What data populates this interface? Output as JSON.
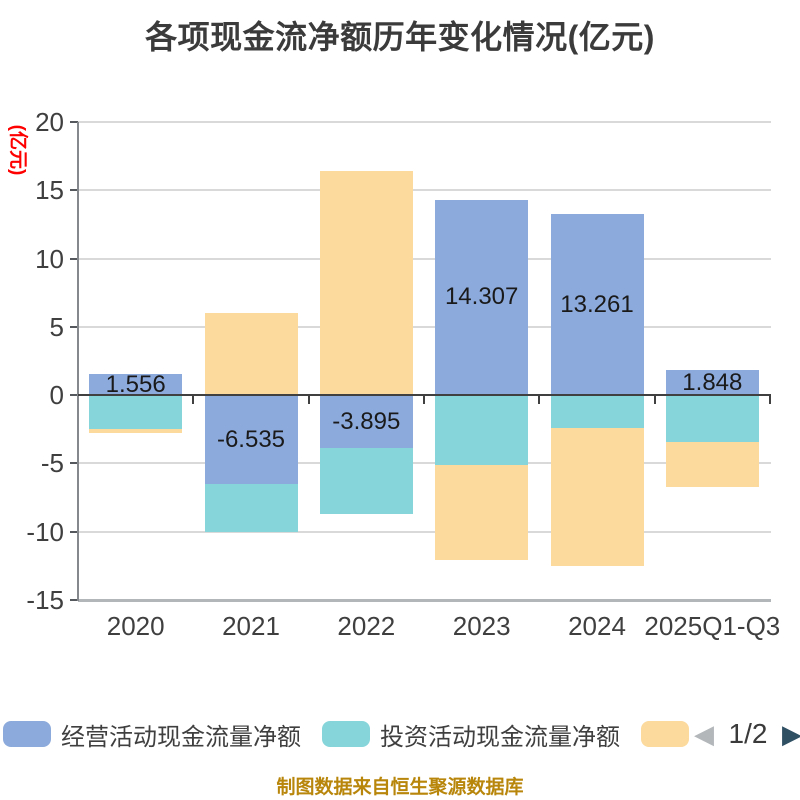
{
  "title": "各项现金流净额历年变化情况(亿元)",
  "y_axis": {
    "name": "(亿元)",
    "name_color": "#fe0000",
    "ticks": [
      20,
      15,
      10,
      5,
      0,
      -5,
      -10,
      -15
    ]
  },
  "chart_data": {
    "type": "bar",
    "stacked": true,
    "title": "各项现金流净额历年变化情况(亿元)",
    "categories": [
      "2020",
      "2021",
      "2022",
      "2023",
      "2024",
      "2025Q1-Q3"
    ],
    "series": [
      {
        "name": "经营活动现金流量净额",
        "color": "#8caadb",
        "values": [
          1.556,
          -6.535,
          -3.895,
          14.307,
          13.261,
          1.848
        ],
        "data_labels": [
          "1.556",
          "-6.535",
          "-3.895",
          "14.307",
          "13.261",
          "1.848"
        ]
      },
      {
        "name": "投资活动现金流量净额",
        "color": "#86d5da",
        "values": [
          -2.5,
          -3.5,
          -4.8,
          -5.1,
          -2.4,
          -3.4
        ]
      },
      {
        "name": "",
        "color": "#fcd99c",
        "values": [
          -0.26,
          6.0,
          16.4,
          -7.0,
          -10.1,
          -3.3
        ]
      }
    ],
    "ylabel": "(亿元)",
    "ylim": [
      -15,
      20
    ],
    "y_tick_step": 5,
    "grid": true,
    "legend_position": "bottom"
  },
  "legend": {
    "items": [
      {
        "label": "经营活动现金流量净额",
        "color": "#8caadb"
      },
      {
        "label": "投资活动现金流量净额",
        "color": "#86d5da"
      },
      {
        "label": "",
        "color": "#fcd99c"
      }
    ],
    "pagination": {
      "current": "1/2",
      "prev_arrow": "◀",
      "next_arrow": "▶",
      "prev_color": "#b3b7ba",
      "next_color": "#2f4f63"
    }
  },
  "footer": {
    "text": "制图数据来自恒生聚源数据库",
    "color": "#b8860b"
  }
}
